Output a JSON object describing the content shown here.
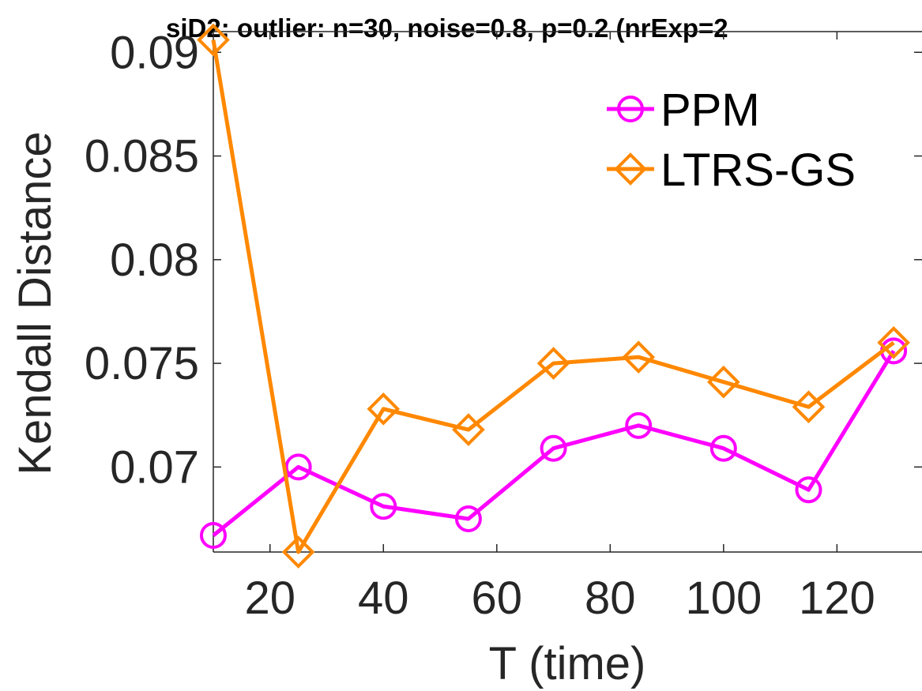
{
  "chart_data": {
    "type": "line",
    "title": "siD2: outlier: n=30, noise=0.8, p=0.2 (nrExp=2",
    "xlabel": "T (time)",
    "ylabel": "Kendall Distance",
    "xlim": [
      10,
      135
    ],
    "ylim": [
      0.0659,
      0.091
    ],
    "x_ticks": [
      20,
      40,
      60,
      80,
      100,
      120
    ],
    "y_ticks": [
      0.07,
      0.075,
      0.08,
      0.085,
      0.09
    ],
    "y_tick_labels": [
      "0.07",
      "0.075",
      "0.08",
      "0.085",
      "0.09"
    ],
    "grid": false,
    "legend_placement": "top-right",
    "series": [
      {
        "name": "PPM",
        "color": "#ff00ff",
        "marker": "circle",
        "x": [
          10,
          25,
          40,
          55,
          70,
          85,
          100,
          115,
          130
        ],
        "values": [
          0.0667,
          0.07,
          0.0681,
          0.0675,
          0.0709,
          0.072,
          0.0709,
          0.0689,
          0.0756
        ]
      },
      {
        "name": "LTRS-GS",
        "color": "#ff8800",
        "marker": "diamond",
        "x": [
          10,
          25,
          40,
          55,
          70,
          85,
          100,
          115,
          130
        ],
        "values": [
          0.0906,
          0.0659,
          0.0728,
          0.0718,
          0.075,
          0.0753,
          0.0741,
          0.0729,
          0.076
        ]
      }
    ]
  }
}
